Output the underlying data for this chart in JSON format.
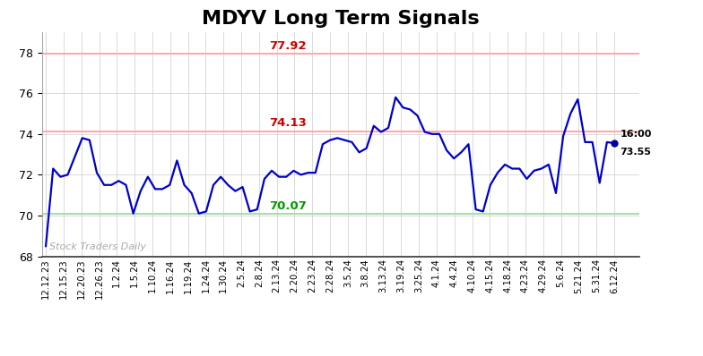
{
  "title": "MDYV Long Term Signals",
  "title_fontsize": 16,
  "background_color": "#ffffff",
  "line_color": "#0000cc",
  "line_width": 1.6,
  "grid_color": "#cccccc",
  "upper_line": 77.92,
  "middle_line": 74.13,
  "lower_line": 70.07,
  "upper_line_color": "#ffaaaa",
  "middle_line_color": "#ffaaaa",
  "lower_line_color": "#aaddaa",
  "upper_label_color": "#cc0000",
  "middle_label_color": "#cc0000",
  "lower_label_color": "#009900",
  "watermark": "Stock Traders Daily",
  "watermark_color": "#aaaaaa",
  "last_dot_color": "#000099",
  "ylim": [
    68,
    79
  ],
  "yticks": [
    68,
    70,
    72,
    74,
    76,
    78
  ],
  "x_labels": [
    "12.12.23",
    "12.15.23",
    "12.20.23",
    "12.26.23",
    "1.2.24",
    "1.5.24",
    "1.10.24",
    "1.16.24",
    "1.19.24",
    "1.24.24",
    "1.30.24",
    "2.5.24",
    "2.8.24",
    "2.13.24",
    "2.20.24",
    "2.23.24",
    "2.28.24",
    "3.5.24",
    "3.8.24",
    "3.13.24",
    "3.19.24",
    "3.25.24",
    "4.1.24",
    "4.4.24",
    "4.10.24",
    "4.15.24",
    "4.18.24",
    "4.23.24",
    "4.29.24",
    "5.6.24",
    "5.21.24",
    "5.31.24",
    "6.12.24"
  ],
  "prices": [
    68.5,
    72.3,
    71.9,
    72.0,
    72.9,
    73.8,
    73.7,
    72.1,
    71.5,
    71.5,
    71.7,
    71.5,
    70.1,
    71.2,
    71.9,
    71.3,
    71.3,
    71.5,
    72.7,
    71.5,
    71.1,
    70.1,
    70.2,
    71.5,
    71.9,
    71.5,
    71.2,
    71.4,
    70.2,
    70.3,
    71.8,
    72.2,
    71.9,
    71.9,
    72.2,
    72.0,
    72.1,
    72.1,
    73.5,
    73.7,
    73.8,
    73.7,
    73.6,
    73.1,
    73.3,
    74.4,
    74.1,
    74.3,
    75.8,
    75.3,
    75.2,
    74.9,
    74.1,
    74.0,
    74.0,
    73.2,
    72.8,
    73.1,
    73.5,
    70.3,
    70.2,
    71.5,
    72.1,
    72.5,
    72.3,
    72.3,
    71.8,
    72.2,
    72.3,
    72.5,
    71.1,
    73.9,
    75.0,
    75.7,
    73.6,
    73.6,
    71.6,
    73.6,
    73.55
  ]
}
